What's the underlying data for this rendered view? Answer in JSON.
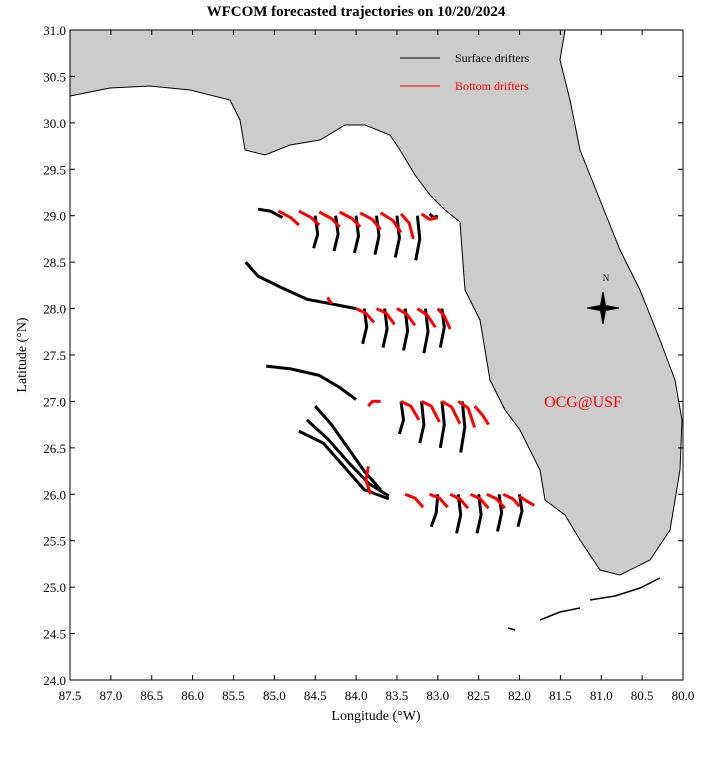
{
  "chart_data": {
    "type": "trajectory",
    "title": "WFCOM forecasted trajectories on 10/20/2024",
    "x_label": "Longitude (°W)",
    "y_label": "Latitude (°N)",
    "annotation": "OCG@USF",
    "annotation_color": "#ff0000",
    "compass_label": "N",
    "xlim": [
      87.5,
      80.0
    ],
    "ylim": [
      24.0,
      31.0
    ],
    "xticks": [
      87.5,
      {
        "value": 87,
        "label": "87.0"
      },
      86.5,
      {
        "value": 86,
        "label": "86.0"
      },
      85.5,
      {
        "value": 85,
        "label": "85.0"
      },
      84.5,
      {
        "value": 84,
        "label": "84.0"
      },
      83.5,
      {
        "value": 83,
        "label": "83.0"
      },
      82.5,
      {
        "value": 82,
        "label": "82.0"
      },
      81.5,
      {
        "value": 81,
        "label": "81.0"
      },
      80.5,
      {
        "value": 80,
        "label": "80.0"
      }
    ],
    "yticks": [
      {
        "value": 24,
        "label": "24.0"
      },
      24.5,
      {
        "value": 25,
        "label": "25.0"
      },
      25.5,
      {
        "value": 26,
        "label": "26.0"
      },
      26.5,
      {
        "value": 27,
        "label": "27.0"
      },
      27.5,
      {
        "value": 28,
        "label": "28.0"
      },
      28.5,
      {
        "value": 29,
        "label": "29.0"
      },
      29.5,
      {
        "value": 30,
        "label": "30.0"
      },
      30.5,
      {
        "value": 31,
        "label": "31.0"
      }
    ],
    "series": [
      {
        "name": "Surface drifters",
        "color": "#000000",
        "tracks": [
          {
            "lon": [
              84.5,
              84.47,
              84.52
            ],
            "lat": [
              29.0,
              28.8,
              28.65
            ]
          },
          {
            "lon": [
              84.25,
              84.22,
              84.27
            ],
            "lat": [
              29.0,
              28.8,
              28.62
            ]
          },
          {
            "lon": [
              84.0,
              83.97,
              84.02
            ],
            "lat": [
              29.0,
              28.78,
              28.6
            ]
          },
          {
            "lon": [
              83.75,
              83.72,
              83.77
            ],
            "lat": [
              29.0,
              28.78,
              28.58
            ]
          },
          {
            "lon": [
              83.5,
              83.47,
              83.52
            ],
            "lat": [
              29.0,
              28.76,
              28.55
            ]
          },
          {
            "lon": [
              83.25,
              83.22,
              83.27
            ],
            "lat": [
              29.0,
              28.75,
              28.52
            ]
          },
          {
            "lon": [
              83.0,
              83.05,
              83.1
            ],
            "lat": [
              29.0,
              28.98,
              29.02
            ]
          },
          {
            "lon": [
              85.2,
              85.05,
              84.9
            ],
            "lat": [
              29.07,
              29.05,
              28.98
            ]
          },
          {
            "lon": [
              85.35,
              85.2,
              84.9,
              84.6,
              84.3,
              84.0
            ],
            "lat": [
              28.5,
              28.35,
              28.22,
              28.1,
              28.05,
              28.0
            ]
          },
          {
            "lon": [
              83.9,
              83.87,
              83.92
            ],
            "lat": [
              28.0,
              27.8,
              27.62
            ]
          },
          {
            "lon": [
              83.65,
              83.62,
              83.67
            ],
            "lat": [
              28.0,
              27.78,
              27.58
            ]
          },
          {
            "lon": [
              83.4,
              83.37,
              83.42
            ],
            "lat": [
              28.0,
              27.76,
              27.55
            ]
          },
          {
            "lon": [
              83.15,
              83.12,
              83.17
            ],
            "lat": [
              28.0,
              27.75,
              27.52
            ]
          },
          {
            "lon": [
              82.95,
              82.92,
              82.97
            ],
            "lat": [
              28.0,
              27.8,
              27.58
            ]
          },
          {
            "lon": [
              85.1,
              84.8,
              84.45,
              84.2,
              84.0
            ],
            "lat": [
              27.38,
              27.35,
              27.28,
              27.15,
              27.02
            ]
          },
          {
            "lon": [
              83.45,
              83.42,
              83.47
            ],
            "lat": [
              27.0,
              26.8,
              26.65
            ]
          },
          {
            "lon": [
              83.2,
              83.17,
              83.22
            ],
            "lat": [
              27.0,
              26.75,
              26.55
            ]
          },
          {
            "lon": [
              82.95,
              82.92,
              82.97
            ],
            "lat": [
              27.0,
              26.75,
              26.5
            ]
          },
          {
            "lon": [
              82.7,
              82.67,
              82.72
            ],
            "lat": [
              27.0,
              26.72,
              26.45
            ]
          },
          {
            "lon": [
              84.5,
              84.3,
              84.1,
              83.9,
              83.7
            ],
            "lat": [
              26.95,
              26.75,
              26.5,
              26.25,
              26.05
            ]
          },
          {
            "lon": [
              84.6,
              84.35,
              84.1,
              83.85,
              83.6
            ],
            "lat": [
              26.8,
              26.6,
              26.35,
              26.12,
              25.98
            ]
          },
          {
            "lon": [
              84.7,
              84.4,
              84.15,
              83.9,
              83.6
            ],
            "lat": [
              26.68,
              26.55,
              26.3,
              26.05,
              25.95
            ]
          },
          {
            "lon": [
              83.0,
              83.02,
              83.08
            ],
            "lat": [
              26.0,
              25.8,
              25.65
            ]
          },
          {
            "lon": [
              82.75,
              82.72,
              82.77
            ],
            "lat": [
              26.0,
              25.78,
              25.58
            ]
          },
          {
            "lon": [
              82.5,
              82.47,
              82.52
            ],
            "lat": [
              26.0,
              25.78,
              25.58
            ]
          },
          {
            "lon": [
              82.25,
              82.22,
              82.27
            ],
            "lat": [
              26.0,
              25.8,
              25.6
            ]
          },
          {
            "lon": [
              82.0,
              81.97,
              82.02
            ],
            "lat": [
              26.0,
              25.82,
              25.65
            ]
          }
        ]
      },
      {
        "name": "Bottom drifters",
        "color": "#ff0000",
        "tracks": [
          {
            "lon": [
              84.95,
              84.8,
              84.7
            ],
            "lat": [
              29.05,
              28.98,
              28.9
            ]
          },
          {
            "lon": [
              84.7,
              84.55,
              84.45
            ],
            "lat": [
              29.05,
              28.98,
              28.9
            ]
          },
          {
            "lon": [
              84.45,
              84.3,
              84.2
            ],
            "lat": [
              29.04,
              28.97,
              28.88
            ]
          },
          {
            "lon": [
              84.2,
              84.05,
              83.95
            ],
            "lat": [
              29.04,
              28.97,
              28.88
            ]
          },
          {
            "lon": [
              83.95,
              83.8,
              83.7
            ],
            "lat": [
              29.03,
              28.96,
              28.85
            ]
          },
          {
            "lon": [
              83.7,
              83.55,
              83.45
            ],
            "lat": [
              29.03,
              28.95,
              28.82
            ]
          },
          {
            "lon": [
              83.45,
              83.35,
              83.3
            ],
            "lat": [
              29.02,
              28.92,
              28.75
            ]
          },
          {
            "lon": [
              83.2,
              83.1,
              83.0
            ],
            "lat": [
              29.02,
              28.96,
              28.98
            ]
          },
          {
            "lon": [
              84.35,
              84.32,
              84.3
            ],
            "lat": [
              28.12,
              28.08,
              28.05
            ]
          },
          {
            "lon": [
              84.0,
              83.88,
              83.78
            ],
            "lat": [
              28.0,
              27.95,
              27.85
            ]
          },
          {
            "lon": [
              83.75,
              83.63,
              83.53
            ],
            "lat": [
              28.0,
              27.95,
              27.83
            ]
          },
          {
            "lon": [
              83.5,
              83.38,
              83.28
            ],
            "lat": [
              28.0,
              27.94,
              27.82
            ]
          },
          {
            "lon": [
              83.25,
              83.13,
              83.03
            ],
            "lat": [
              28.0,
              27.93,
              27.8
            ]
          },
          {
            "lon": [
              83.0,
              82.92,
              82.85
            ],
            "lat": [
              28.0,
              27.92,
              27.78
            ]
          },
          {
            "lon": [
              83.85,
              83.8,
              83.7
            ],
            "lat": [
              26.95,
              27.0,
              27.0
            ]
          },
          {
            "lon": [
              83.45,
              83.33,
              83.23
            ],
            "lat": [
              27.0,
              26.95,
              26.8
            ]
          },
          {
            "lon": [
              83.2,
              83.08,
              82.98
            ],
            "lat": [
              27.0,
              26.95,
              26.78
            ]
          },
          {
            "lon": [
              82.95,
              82.83,
              82.73
            ],
            "lat": [
              27.0,
              26.94,
              26.76
            ]
          },
          {
            "lon": [
              82.75,
              82.63,
              82.55
            ],
            "lat": [
              27.0,
              26.93,
              26.72
            ]
          },
          {
            "lon": [
              82.55,
              82.45,
              82.38
            ],
            "lat": [
              26.95,
              26.85,
              26.75
            ]
          },
          {
            "lon": [
              83.85,
              83.88,
              83.82
            ],
            "lat": [
              26.3,
              26.15,
              26.0
            ]
          },
          {
            "lon": [
              83.4,
              83.28,
              83.18
            ],
            "lat": [
              26.0,
              25.96,
              25.86
            ]
          },
          {
            "lon": [
              83.1,
              82.98,
              82.88
            ],
            "lat": [
              26.0,
              25.96,
              25.86
            ]
          },
          {
            "lon": [
              82.85,
              82.73,
              82.63
            ],
            "lat": [
              26.0,
              25.95,
              25.85
            ]
          },
          {
            "lon": [
              82.6,
              82.48,
              82.38
            ],
            "lat": [
              26.0,
              25.95,
              25.85
            ]
          },
          {
            "lon": [
              82.4,
              82.28,
              82.18
            ],
            "lat": [
              26.0,
              25.95,
              25.85
            ]
          },
          {
            "lon": [
              82.2,
              82.08,
              82.0
            ],
            "lat": [
              26.0,
              25.95,
              25.87
            ]
          },
          {
            "lon": [
              82.0,
              81.9,
              81.82
            ],
            "lat": [
              25.98,
              25.92,
              25.88
            ]
          }
        ]
      }
    ]
  }
}
